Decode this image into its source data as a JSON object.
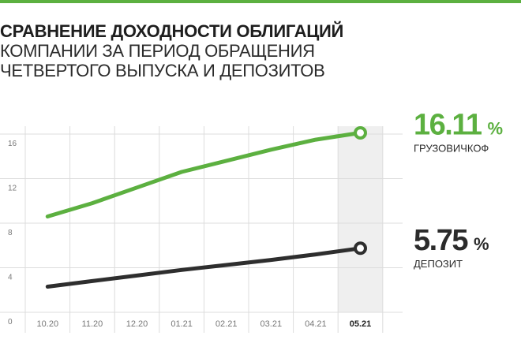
{
  "title": {
    "line1": "СРАВНЕНИЕ ДОХОДНОСТИ ОБЛИГАЦИЙ",
    "line2": "КОМПАНИИ ЗА ПЕРИОД ОБРАЩЕНИЯ",
    "line3": "ЧЕТВЕРТОГО ВЫПУСКА И ДЕПОЗИТОВ"
  },
  "colors": {
    "accent": "#5cb040",
    "dark": "#2e2e2e",
    "grid": "#dcdcdc",
    "highlight": "#efefef",
    "tick": "#777777"
  },
  "chart_data": {
    "type": "line",
    "categories": [
      "10.20",
      "11.20",
      "12.20",
      "01.21",
      "02.21",
      "03.21",
      "04.21",
      "05.21"
    ],
    "highlighted_category": "05.21",
    "ylim": [
      0,
      16
    ],
    "yticks": [
      "0",
      "4",
      "8",
      "12",
      "16"
    ],
    "xlabel": "",
    "ylabel": "",
    "grid": true,
    "series": [
      {
        "name": "ГРУЗОВИЧКОФ",
        "color": "#5cb040",
        "values": [
          8.6,
          9.8,
          11.2,
          12.6,
          13.6,
          14.6,
          15.5,
          16.11
        ],
        "end_value": "16.11",
        "unit": "%"
      },
      {
        "name": "ДЕПОЗИТ",
        "color": "#2e2e2e",
        "values": [
          2.3,
          2.8,
          3.3,
          3.8,
          4.25,
          4.7,
          5.2,
          5.75
        ],
        "end_value": "5.75",
        "unit": "%"
      }
    ]
  }
}
